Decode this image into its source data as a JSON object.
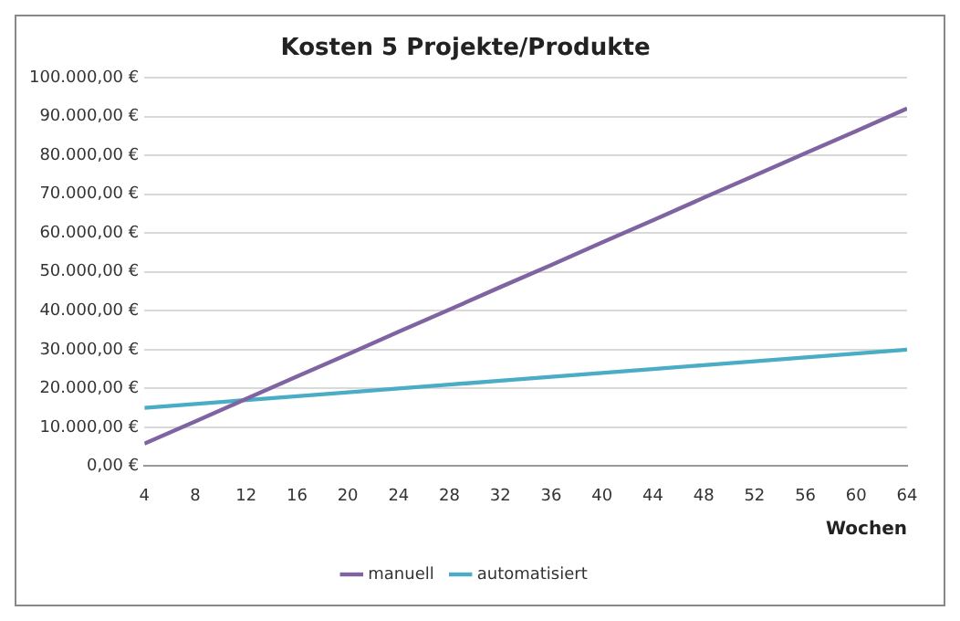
{
  "chart_data": {
    "type": "line",
    "title": "Kosten 5 Projekte/Produkte",
    "xlabel": "Wochen",
    "x": [
      4,
      8,
      12,
      16,
      20,
      24,
      28,
      32,
      36,
      40,
      44,
      48,
      52,
      56,
      60,
      64
    ],
    "series": [
      {
        "name": "manuell",
        "color": "#8064a2",
        "values": [
          5800,
          11500,
          17300,
          23100,
          28800,
          34600,
          40300,
          46100,
          51800,
          57600,
          63300,
          69100,
          74800,
          80600,
          86300,
          92100
        ]
      },
      {
        "name": "automatisiert",
        "color": "#4bacc6",
        "values": [
          15000,
          16000,
          17000,
          18000,
          19000,
          20000,
          21000,
          22000,
          23000,
          24000,
          25000,
          26000,
          27000,
          28000,
          29000,
          30000
        ]
      }
    ],
    "xlim": [
      4,
      64
    ],
    "xticks": [
      4,
      8,
      12,
      16,
      20,
      24,
      28,
      32,
      36,
      40,
      44,
      48,
      52,
      56,
      60,
      64
    ],
    "ylim": [
      0,
      100000
    ],
    "yticks": [
      {
        "value": 0,
        "label": "0,00 €"
      },
      {
        "value": 10000,
        "label": "10.000,00 €"
      },
      {
        "value": 20000,
        "label": "20.000,00 €"
      },
      {
        "value": 30000,
        "label": "30.000,00 €"
      },
      {
        "value": 40000,
        "label": "40.000,00 €"
      },
      {
        "value": 50000,
        "label": "50.000,00 €"
      },
      {
        "value": 60000,
        "label": "60.000,00 €"
      },
      {
        "value": 70000,
        "label": "70.000,00 €"
      },
      {
        "value": 80000,
        "label": "80.000,00 €"
      },
      {
        "value": 90000,
        "label": "90.000,00 €"
      },
      {
        "value": 100000,
        "label": "100.000,00 €"
      }
    ],
    "grid": "y",
    "legend": "bottom",
    "marker": "none",
    "line_style": "solid"
  }
}
